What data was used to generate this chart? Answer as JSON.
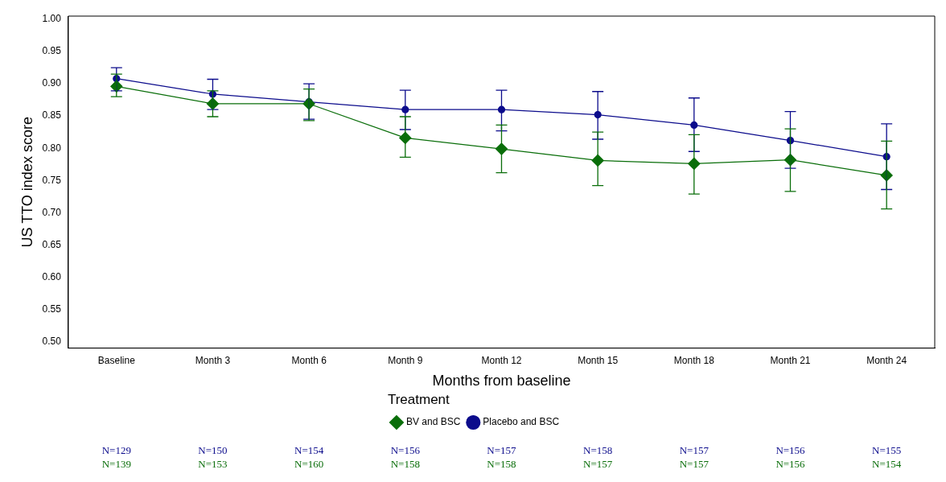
{
  "chart_data": {
    "type": "line",
    "xlabel": "Months from baseline",
    "ylabel": "US TTO index score",
    "legend_title": "Treatment",
    "legend": "bottom",
    "grid": false,
    "categories": [
      "Baseline",
      "Month 3",
      "Month 6",
      "Month 9",
      "Month 12",
      "Month 15",
      "Month 18",
      "Month 21",
      "Month 24"
    ],
    "ylim": [
      0.49,
      1.005
    ],
    "yticks": [
      {
        "value": 0.5,
        "label": "0.50"
      },
      {
        "value": 0.55,
        "label": "0.55"
      },
      {
        "value": 0.6,
        "label": "0.60"
      },
      {
        "value": 0.65,
        "label": "0.65"
      },
      {
        "value": 0.7,
        "label": "0.70"
      },
      {
        "value": 0.75,
        "label": "0.75"
      },
      {
        "value": 0.8,
        "label": "0.80"
      },
      {
        "value": 0.85,
        "label": "0.85"
      },
      {
        "value": 0.9,
        "label": "0.90"
      },
      {
        "value": 0.95,
        "label": "0.95"
      },
      {
        "value": 1.0,
        "label": "1.00"
      }
    ],
    "series": [
      {
        "name": "Placebo and BSC",
        "color": "#0c0c8c",
        "marker": "circle",
        "line_style": "solid",
        "values": [
          0.908,
          0.884,
          0.872,
          0.86,
          0.86,
          0.852,
          0.836,
          0.812,
          0.787
        ],
        "errors": [
          [
            0.889,
            0.925
          ],
          [
            0.86,
            0.907
          ],
          [
            0.845,
            0.9
          ],
          [
            0.829,
            0.89
          ],
          [
            0.827,
            0.89
          ],
          [
            0.814,
            0.888
          ],
          [
            0.795,
            0.878
          ],
          [
            0.769,
            0.857
          ],
          [
            0.736,
            0.838
          ]
        ]
      },
      {
        "name": "BV and BSC",
        "color": "#0a6e0a",
        "marker": "diamond",
        "line_style": "solid",
        "values": [
          0.896,
          0.869,
          0.869,
          0.816,
          0.799,
          0.781,
          0.776,
          0.782,
          0.758
        ],
        "errors": [
          [
            0.88,
            0.915
          ],
          [
            0.849,
            0.889
          ],
          [
            0.843,
            0.892
          ],
          [
            0.786,
            0.849
          ],
          [
            0.762,
            0.836
          ],
          [
            0.742,
            0.825
          ],
          [
            0.729,
            0.821
          ],
          [
            0.733,
            0.83
          ],
          [
            0.706,
            0.811
          ]
        ]
      }
    ],
    "annotations": [
      "N=129",
      "N=150",
      "N=154",
      "N=156",
      "N=157",
      "N=158",
      "N=157",
      "N=156",
      "N=155",
      "N=139",
      "N=153",
      "N=160",
      "N=158",
      "N=158",
      "N=157",
      "N=157",
      "N=156",
      "N=154"
    ]
  }
}
